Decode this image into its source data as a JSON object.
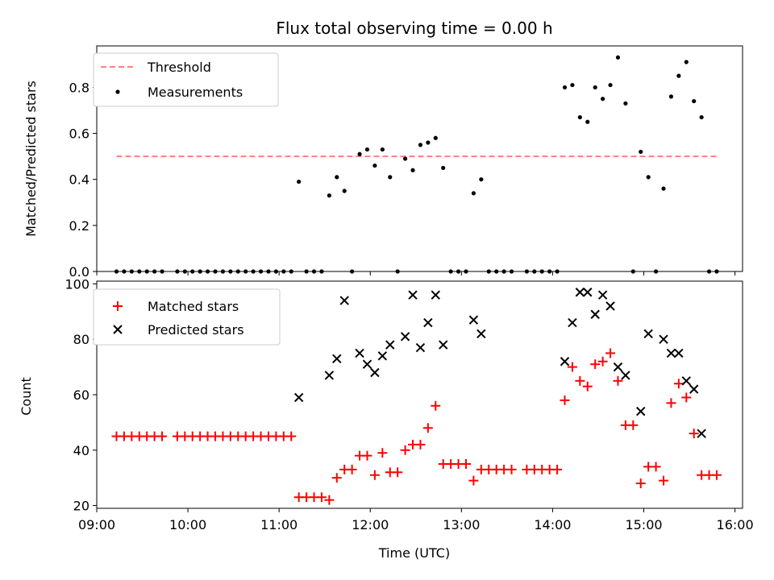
{
  "chart_data": [
    {
      "type": "line+scatter",
      "title": "Flux total observing time = 0.00 h",
      "xlabel": "",
      "ylabel": "Matched/Predicted stars",
      "xlim": [
        "09:00",
        "16:05"
      ],
      "ylim": [
        0,
        0.98
      ],
      "x_ticks": [
        "09:00",
        "10:00",
        "11:00",
        "12:00",
        "13:00",
        "14:00",
        "15:00",
        "16:00"
      ],
      "y_ticks": [
        "0.0",
        "0.2",
        "0.4",
        "0.6",
        "0.8"
      ],
      "legend": {
        "placement": "upper-left",
        "entries": [
          "Threshold",
          "Measurements"
        ]
      },
      "colors": {
        "threshold": "#ff7f7f",
        "measurements": "#000000"
      },
      "threshold": {
        "name": "Threshold",
        "value": 0.5,
        "x_range": [
          "09:13",
          "15:48"
        ]
      },
      "series": [
        {
          "name": "Measurements",
          "points": [
            [
              "09:13",
              0.0
            ],
            [
              "09:18",
              0.0
            ],
            [
              "09:23",
              0.0
            ],
            [
              "09:28",
              0.0
            ],
            [
              "09:33",
              0.0
            ],
            [
              "09:38",
              0.0
            ],
            [
              "09:43",
              0.0
            ],
            [
              "09:53",
              0.0
            ],
            [
              "09:58",
              0.0
            ],
            [
              "10:03",
              0.0
            ],
            [
              "10:08",
              0.0
            ],
            [
              "10:13",
              0.0
            ],
            [
              "10:18",
              0.0
            ],
            [
              "10:23",
              0.0
            ],
            [
              "10:28",
              0.0
            ],
            [
              "10:33",
              0.0
            ],
            [
              "10:38",
              0.0
            ],
            [
              "10:43",
              0.0
            ],
            [
              "10:48",
              0.0
            ],
            [
              "10:53",
              0.0
            ],
            [
              "10:58",
              0.0
            ],
            [
              "11:03",
              0.0
            ],
            [
              "11:08",
              0.0
            ],
            [
              "11:13",
              0.39
            ],
            [
              "11:18",
              0.0
            ],
            [
              "11:23",
              0.0
            ],
            [
              "11:28",
              0.0
            ],
            [
              "11:33",
              0.33
            ],
            [
              "11:38",
              0.41
            ],
            [
              "11:43",
              0.35
            ],
            [
              "11:48",
              0.0
            ],
            [
              "11:53",
              0.51
            ],
            [
              "11:58",
              0.53
            ],
            [
              "12:03",
              0.46
            ],
            [
              "12:08",
              0.53
            ],
            [
              "12:13",
              0.41
            ],
            [
              "12:18",
              0.0
            ],
            [
              "12:23",
              0.49
            ],
            [
              "12:28",
              0.44
            ],
            [
              "12:33",
              0.55
            ],
            [
              "12:38",
              0.56
            ],
            [
              "12:43",
              0.58
            ],
            [
              "12:48",
              0.45
            ],
            [
              "12:53",
              0.0
            ],
            [
              "12:58",
              0.0
            ],
            [
              "13:03",
              0.0
            ],
            [
              "13:08",
              0.34
            ],
            [
              "13:13",
              0.4
            ],
            [
              "13:18",
              0.0
            ],
            [
              "13:23",
              0.0
            ],
            [
              "13:28",
              0.0
            ],
            [
              "13:33",
              0.0
            ],
            [
              "13:43",
              0.0
            ],
            [
              "13:48",
              0.0
            ],
            [
              "13:53",
              0.0
            ],
            [
              "13:58",
              0.0
            ],
            [
              "14:03",
              0.0
            ],
            [
              "14:08",
              0.8
            ],
            [
              "14:13",
              0.81
            ],
            [
              "14:18",
              0.67
            ],
            [
              "14:23",
              0.65
            ],
            [
              "14:28",
              0.8
            ],
            [
              "14:33",
              0.75
            ],
            [
              "14:38",
              0.81
            ],
            [
              "14:43",
              0.93
            ],
            [
              "14:48",
              0.73
            ],
            [
              "14:53",
              0.0
            ],
            [
              "14:58",
              0.52
            ],
            [
              "15:03",
              0.41
            ],
            [
              "15:08",
              0.0
            ],
            [
              "15:13",
              0.36
            ],
            [
              "15:18",
              0.76
            ],
            [
              "15:23",
              0.85
            ],
            [
              "15:28",
              0.91
            ],
            [
              "15:33",
              0.74
            ],
            [
              "15:38",
              0.67
            ],
            [
              "15:43",
              0.0
            ],
            [
              "15:48",
              0.0
            ]
          ]
        }
      ]
    },
    {
      "type": "scatter",
      "title": "",
      "xlabel": "Time (UTC)",
      "ylabel": "Count",
      "xlim": [
        "09:00",
        "16:05"
      ],
      "ylim": [
        19,
        101
      ],
      "x_ticks": [
        "09:00",
        "10:00",
        "11:00",
        "12:00",
        "13:00",
        "14:00",
        "15:00",
        "16:00"
      ],
      "y_ticks": [
        "20",
        "40",
        "60",
        "80",
        "100"
      ],
      "legend": {
        "placement": "upper-left",
        "entries": [
          "Matched stars",
          "Predicted stars"
        ]
      },
      "colors": {
        "matched": "#ff0000",
        "predicted": "#000000"
      },
      "series": [
        {
          "name": "Matched stars",
          "marker": "plus",
          "points": [
            [
              "09:13",
              45
            ],
            [
              "09:18",
              45
            ],
            [
              "09:23",
              45
            ],
            [
              "09:28",
              45
            ],
            [
              "09:33",
              45
            ],
            [
              "09:38",
              45
            ],
            [
              "09:43",
              45
            ],
            [
              "09:53",
              45
            ],
            [
              "09:58",
              45
            ],
            [
              "10:03",
              45
            ],
            [
              "10:08",
              45
            ],
            [
              "10:13",
              45
            ],
            [
              "10:18",
              45
            ],
            [
              "10:23",
              45
            ],
            [
              "10:28",
              45
            ],
            [
              "10:33",
              45
            ],
            [
              "10:38",
              45
            ],
            [
              "10:43",
              45
            ],
            [
              "10:48",
              45
            ],
            [
              "10:53",
              45
            ],
            [
              "10:58",
              45
            ],
            [
              "11:03",
              45
            ],
            [
              "11:08",
              45
            ],
            [
              "11:13",
              23
            ],
            [
              "11:18",
              23
            ],
            [
              "11:23",
              23
            ],
            [
              "11:28",
              23
            ],
            [
              "11:33",
              22
            ],
            [
              "11:38",
              30
            ],
            [
              "11:43",
              33
            ],
            [
              "11:48",
              33
            ],
            [
              "11:53",
              38
            ],
            [
              "11:58",
              38
            ],
            [
              "12:03",
              31
            ],
            [
              "12:08",
              39
            ],
            [
              "12:13",
              32
            ],
            [
              "12:18",
              32
            ],
            [
              "12:23",
              40
            ],
            [
              "12:28",
              42
            ],
            [
              "12:33",
              42
            ],
            [
              "12:38",
              48
            ],
            [
              "12:43",
              56
            ],
            [
              "12:48",
              35
            ],
            [
              "12:53",
              35
            ],
            [
              "12:58",
              35
            ],
            [
              "13:03",
              35
            ],
            [
              "13:08",
              29
            ],
            [
              "13:13",
              33
            ],
            [
              "13:18",
              33
            ],
            [
              "13:23",
              33
            ],
            [
              "13:28",
              33
            ],
            [
              "13:33",
              33
            ],
            [
              "13:43",
              33
            ],
            [
              "13:48",
              33
            ],
            [
              "13:53",
              33
            ],
            [
              "13:58",
              33
            ],
            [
              "14:03",
              33
            ],
            [
              "14:08",
              58
            ],
            [
              "14:13",
              70
            ],
            [
              "14:18",
              65
            ],
            [
              "14:23",
              63
            ],
            [
              "14:28",
              71
            ],
            [
              "14:33",
              72
            ],
            [
              "14:38",
              75
            ],
            [
              "14:43",
              65
            ],
            [
              "14:48",
              49
            ],
            [
              "14:53",
              49
            ],
            [
              "14:58",
              28
            ],
            [
              "15:03",
              34
            ],
            [
              "15:08",
              34
            ],
            [
              "15:13",
              29
            ],
            [
              "15:18",
              57
            ],
            [
              "15:23",
              64
            ],
            [
              "15:28",
              59
            ],
            [
              "15:33",
              46
            ],
            [
              "15:38",
              31
            ],
            [
              "15:43",
              31
            ],
            [
              "15:48",
              31
            ]
          ]
        },
        {
          "name": "Predicted stars",
          "marker": "x",
          "points": [
            [
              "11:13",
              59
            ],
            [
              "11:33",
              67
            ],
            [
              "11:38",
              73
            ],
            [
              "11:43",
              94
            ],
            [
              "11:53",
              75
            ],
            [
              "11:58",
              71
            ],
            [
              "12:03",
              68
            ],
            [
              "12:08",
              74
            ],
            [
              "12:13",
              78
            ],
            [
              "12:23",
              81
            ],
            [
              "12:28",
              96
            ],
            [
              "12:33",
              77
            ],
            [
              "12:38",
              86
            ],
            [
              "12:43",
              96
            ],
            [
              "12:48",
              78
            ],
            [
              "13:08",
              87
            ],
            [
              "13:13",
              82
            ],
            [
              "14:08",
              72
            ],
            [
              "14:13",
              86
            ],
            [
              "14:18",
              97
            ],
            [
              "14:23",
              97
            ],
            [
              "14:28",
              89
            ],
            [
              "14:33",
              96
            ],
            [
              "14:38",
              92
            ],
            [
              "14:43",
              70
            ],
            [
              "14:48",
              67
            ],
            [
              "14:58",
              54
            ],
            [
              "15:03",
              82
            ],
            [
              "15:13",
              80
            ],
            [
              "15:18",
              75
            ],
            [
              "15:23",
              75
            ],
            [
              "15:28",
              65
            ],
            [
              "15:33",
              62
            ],
            [
              "15:38",
              46
            ]
          ]
        }
      ]
    }
  ]
}
